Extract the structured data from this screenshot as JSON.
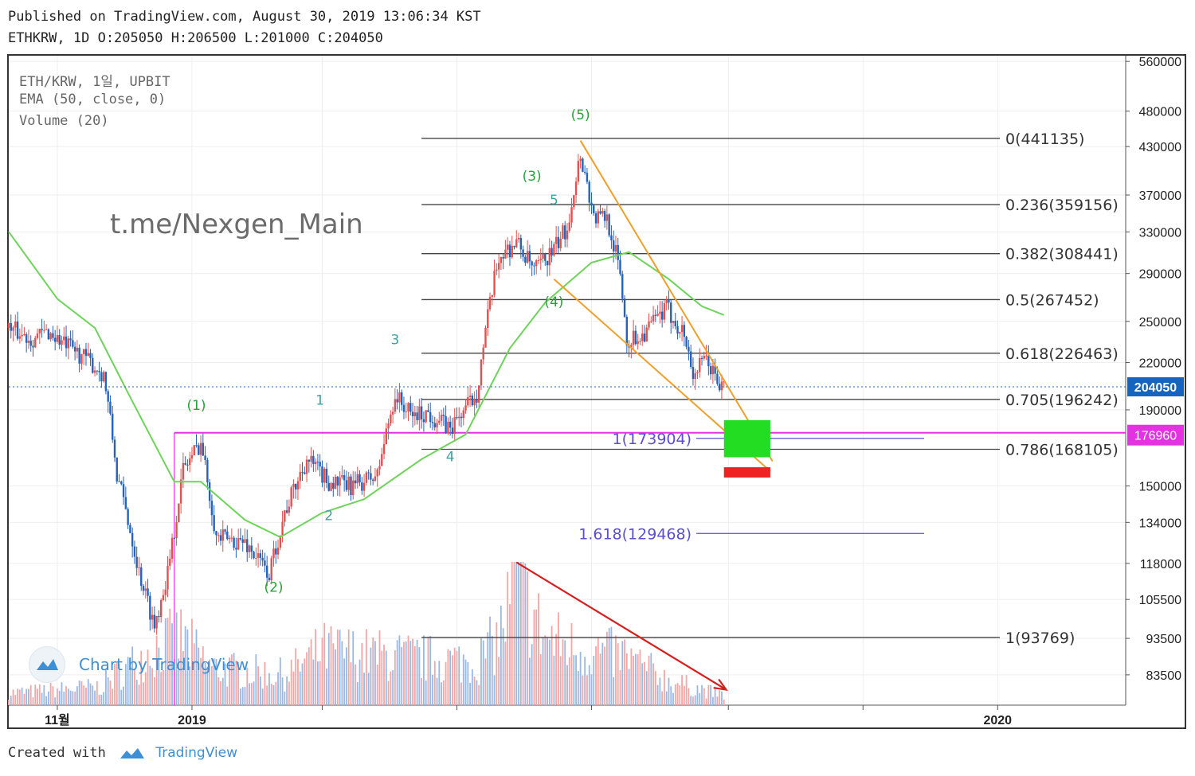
{
  "header": {
    "published": "Published on TradingView.com, August 30, 2019 13:06:34 KST",
    "ohlc": "ETHKRW, 1D O:205050 H:206500 L:201000 C:204050"
  },
  "legend": {
    "symbol": "ETH/KRW, 1일, UPBIT",
    "ema": "EMA (50, close, 0)",
    "volume": "Volume (20)"
  },
  "watermark": "t.me/Nexgen_Main",
  "logo_text": "Chart by TradingView",
  "footer": {
    "prefix": "Created with",
    "brand": "TradingView"
  },
  "colors": {
    "up": "#e05252",
    "down": "#2563b8",
    "ema": "#6ed35a",
    "fib": "#444444",
    "fib_ext": "#5b4fd1",
    "wedge": "#f0a02a",
    "magenta": "#e233e2",
    "arrow": "#d62020",
    "wave": "#27a33a",
    "subwave": "#3aa3a3",
    "target_green": "#22dd22",
    "target_red": "#ee2222",
    "price_tag": "#1565c0",
    "magenta_tag": "#e233e2"
  },
  "chart_data": {
    "type": "candlestick",
    "symbol": "ETH/KRW",
    "interval": "1D",
    "exchange": "UPBIT",
    "scale": "log",
    "ylim": [
      76000,
      570000
    ],
    "y_ticks": [
      560000,
      480000,
      430000,
      370000,
      330000,
      290000,
      250000,
      220000,
      190000,
      150000,
      134000,
      118000,
      105500,
      93500,
      83500
    ],
    "x_ticks": [
      {
        "date": "2018-11-01",
        "label": "11월"
      },
      {
        "date": "2019-01-01",
        "label": "2019"
      },
      {
        "date": "2019-03-01",
        "label": ""
      },
      {
        "date": "2019-05-01",
        "label": ""
      },
      {
        "date": "2019-07-01",
        "label": ""
      },
      {
        "date": "2019-09-01",
        "label": ""
      },
      {
        "date": "2019-11-01",
        "label": ""
      },
      {
        "date": "2020-01-01",
        "label": "2020"
      }
    ],
    "x_range": [
      "2018-10-10",
      "2020-02-28"
    ],
    "grid": true,
    "last_price": {
      "value": 204050,
      "label": "204050"
    },
    "horizontal_level": {
      "value": 176960,
      "label": "176960",
      "from": "2018-12-24"
    },
    "price_path": [
      [
        "2018-10-10",
        245000
      ],
      [
        "2018-10-20",
        237000
      ],
      [
        "2018-10-28",
        242000
      ],
      [
        "2018-11-05",
        232000
      ],
      [
        "2018-11-12",
        225000
      ],
      [
        "2018-11-22",
        212000
      ],
      [
        "2018-11-28",
        155000
      ],
      [
        "2018-12-08",
        115000
      ],
      [
        "2018-12-15",
        97000
      ],
      [
        "2018-12-22",
        118000
      ],
      [
        "2018-12-28",
        158000
      ],
      [
        "2019-01-05",
        172000
      ],
      [
        "2019-01-12",
        128000
      ],
      [
        "2019-01-25",
        126000
      ],
      [
        "2019-02-05",
        114000
      ],
      [
        "2019-02-12",
        138000
      ],
      [
        "2019-02-22",
        163000
      ],
      [
        "2019-03-04",
        152000
      ],
      [
        "2019-03-14",
        150000
      ],
      [
        "2019-03-26",
        155000
      ],
      [
        "2019-04-03",
        199000
      ],
      [
        "2019-04-10",
        187000
      ],
      [
        "2019-04-18",
        188000
      ],
      [
        "2019-04-28",
        179000
      ],
      [
        "2019-05-10",
        200000
      ],
      [
        "2019-05-20",
        305000
      ],
      [
        "2019-05-28",
        320000
      ],
      [
        "2019-06-05",
        292000
      ],
      [
        "2019-06-14",
        312000
      ],
      [
        "2019-06-20",
        335000
      ],
      [
        "2019-06-26",
        420000
      ],
      [
        "2019-07-02",
        345000
      ],
      [
        "2019-07-08",
        345000
      ],
      [
        "2019-07-14",
        290000
      ],
      [
        "2019-07-17",
        235000
      ],
      [
        "2019-07-24",
        240000
      ],
      [
        "2019-08-04",
        260000
      ],
      [
        "2019-08-12",
        240000
      ],
      [
        "2019-08-16",
        212000
      ],
      [
        "2019-08-22",
        222000
      ],
      [
        "2019-08-28",
        205000
      ],
      [
        "2019-08-30",
        204050
      ]
    ],
    "ema_50_path": [
      [
        "2018-10-10",
        330000
      ],
      [
        "2018-11-01",
        268000
      ],
      [
        "2018-11-18",
        245000
      ],
      [
        "2018-12-05",
        195000
      ],
      [
        "2018-12-24",
        152000
      ],
      [
        "2019-01-05",
        152000
      ],
      [
        "2019-01-25",
        135000
      ],
      [
        "2019-02-10",
        128000
      ],
      [
        "2019-03-01",
        138000
      ],
      [
        "2019-03-20",
        144000
      ],
      [
        "2019-04-15",
        163000
      ],
      [
        "2019-05-05",
        176000
      ],
      [
        "2019-05-25",
        230000
      ],
      [
        "2019-06-10",
        265000
      ],
      [
        "2019-07-01",
        300000
      ],
      [
        "2019-07-18",
        310000
      ],
      [
        "2019-08-05",
        285000
      ],
      [
        "2019-08-20",
        262000
      ],
      [
        "2019-08-30",
        255000
      ]
    ],
    "fib_retracement": [
      {
        "ratio": "0",
        "value": 441135,
        "label": "0(441135)"
      },
      {
        "ratio": "0.236",
        "value": 359156,
        "label": "0.236(359156)"
      },
      {
        "ratio": "0.382",
        "value": 308441,
        "label": "0.382(308441)"
      },
      {
        "ratio": "0.5",
        "value": 267452,
        "label": "0.5(267452)"
      },
      {
        "ratio": "0.618",
        "value": 226463,
        "label": "0.618(226463)"
      },
      {
        "ratio": "0.705",
        "value": 196242,
        "label": "0.705(196242)"
      },
      {
        "ratio": "0.786",
        "value": 168105,
        "label": "0.786(168105)"
      },
      {
        "ratio": "1",
        "value": 93769,
        "label": "1(93769)"
      }
    ],
    "fib_extension": [
      {
        "value": 173904,
        "label": "1(173904)"
      },
      {
        "value": 129468,
        "label": "1.618(129468)"
      }
    ],
    "elliott_waves": [
      {
        "label": "(1)",
        "date": "2019-01-03",
        "value": 190000
      },
      {
        "label": "(2)",
        "date": "2019-02-07",
        "value": 108000
      },
      {
        "label": "(3)",
        "date": "2019-06-04",
        "value": 387000
      },
      {
        "label": "(4)",
        "date": "2019-06-14",
        "value": 262000
      },
      {
        "label": "(5)",
        "date": "2019-06-26",
        "value": 468000
      }
    ],
    "sub_waves": [
      {
        "label": "1",
        "date": "2019-02-28",
        "value": 193000
      },
      {
        "label": "2",
        "date": "2019-03-04",
        "value": 135000
      },
      {
        "label": "3",
        "date": "2019-04-03",
        "value": 233000
      },
      {
        "label": "4",
        "date": "2019-04-28",
        "value": 162000
      },
      {
        "label": "5",
        "date": "2019-06-14",
        "value": 359000
      }
    ],
    "wedge": {
      "upper": [
        [
          "2019-06-26",
          438000
        ],
        [
          "2019-09-21",
          162000
        ]
      ],
      "lower": [
        [
          "2019-06-14",
          285000
        ],
        [
          "2019-09-20",
          157000
        ]
      ]
    },
    "target_zones": [
      {
        "color": "green",
        "from": "2019-08-30",
        "to": "2019-09-20",
        "high": 184000,
        "low": 164000
      },
      {
        "color": "red",
        "from": "2019-08-30",
        "to": "2019-09-20",
        "high": 159000,
        "low": 154000
      }
    ],
    "volume_trend_arrow": [
      [
        "2019-05-28",
        0.92
      ],
      [
        "2019-08-31",
        0.1
      ]
    ],
    "volume_levels_relative": [
      [
        "2018-10-10",
        0.1
      ],
      [
        "2018-11-20",
        0.15
      ],
      [
        "2018-12-14",
        0.45
      ],
      [
        "2018-12-27",
        0.55
      ],
      [
        "2019-01-10",
        0.3
      ],
      [
        "2019-02-12",
        0.25
      ],
      [
        "2019-03-01",
        0.45
      ],
      [
        "2019-04-01",
        0.4
      ],
      [
        "2019-05-10",
        0.35
      ],
      [
        "2019-05-20",
        0.55
      ],
      [
        "2019-05-28",
        1.0
      ],
      [
        "2019-06-10",
        0.55
      ],
      [
        "2019-06-26",
        0.45
      ],
      [
        "2019-07-16",
        0.4
      ],
      [
        "2019-08-05",
        0.2
      ],
      [
        "2019-08-30",
        0.08
      ]
    ]
  }
}
